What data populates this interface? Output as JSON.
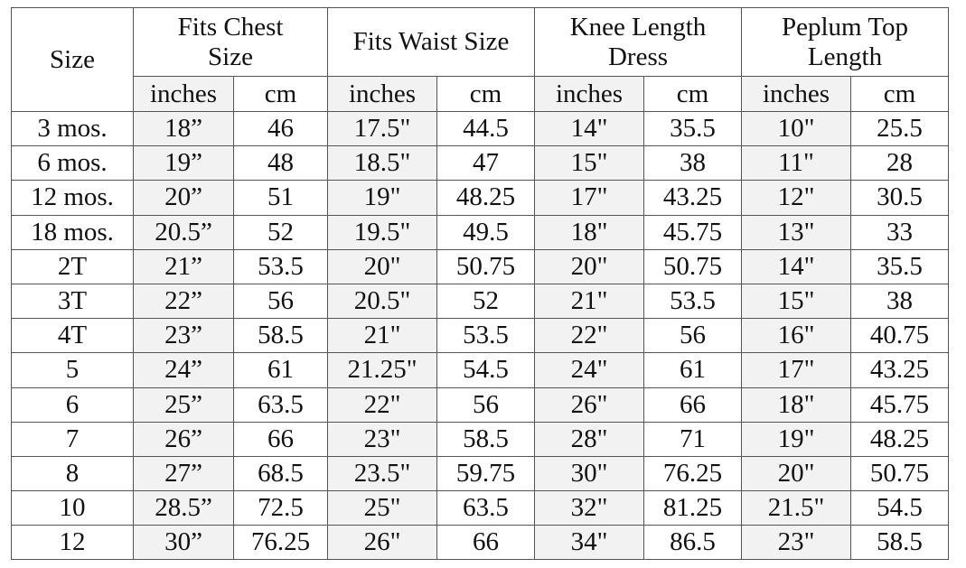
{
  "table": {
    "size_header": "Size",
    "groups": [
      "Fits Chest Size",
      "Fits Waist Size",
      "Knee Length Dress",
      "Peplum Top Length"
    ],
    "unit_inches": "inches",
    "unit_cm": "cm",
    "shaded_color": "#f2f2f2",
    "rows": [
      [
        "3 mos.",
        "18”",
        "46",
        "17.5\"",
        "44.5",
        "14\"",
        "35.5",
        "10\"",
        "25.5"
      ],
      [
        "6 mos.",
        "19”",
        "48",
        "18.5\"",
        "47",
        "15\"",
        "38",
        "11\"",
        "28"
      ],
      [
        "12 mos.",
        "20”",
        "51",
        "19\"",
        "48.25",
        "17\"",
        "43.25",
        "12\"",
        "30.5"
      ],
      [
        "18 mos.",
        "20.5”",
        "52",
        "19.5\"",
        "49.5",
        "18\"",
        "45.75",
        "13\"",
        "33"
      ],
      [
        "2T",
        "21”",
        "53.5",
        "20\"",
        "50.75",
        "20\"",
        "50.75",
        "14\"",
        "35.5"
      ],
      [
        "3T",
        "22”",
        "56",
        "20.5\"",
        "52",
        "21\"",
        "53.5",
        "15\"",
        "38"
      ],
      [
        "4T",
        "23”",
        "58.5",
        "21\"",
        "53.5",
        "22\"",
        "56",
        "16\"",
        "40.75"
      ],
      [
        "5",
        "24”",
        "61",
        "21.25\"",
        "54.5",
        "24\"",
        "61",
        "17\"",
        "43.25"
      ],
      [
        "6",
        "25”",
        "63.5",
        "22\"",
        "56",
        "26\"",
        "66",
        "18\"",
        "45.75"
      ],
      [
        "7",
        "26”",
        "66",
        "23\"",
        "58.5",
        "28\"",
        "71",
        "19\"",
        "48.25"
      ],
      [
        "8",
        "27”",
        "68.5",
        "23.5\"",
        "59.75",
        "30\"",
        "76.25",
        "20\"",
        "50.75"
      ],
      [
        "10",
        "28.5”",
        "72.5",
        "25\"",
        "63.5",
        "32\"",
        "81.25",
        "21.5\"",
        "54.5"
      ],
      [
        "12",
        "30”",
        "76.25",
        "26\"",
        "66",
        "34\"",
        "86.5",
        "23\"",
        "58.5"
      ]
    ]
  }
}
